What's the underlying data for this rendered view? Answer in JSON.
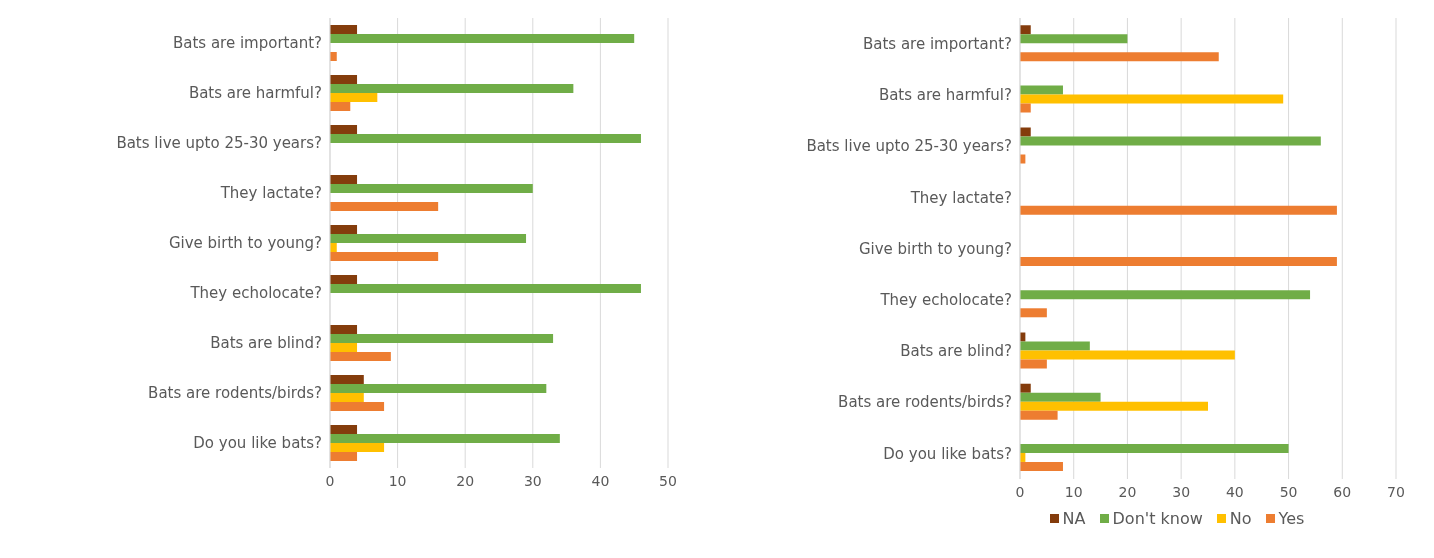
{
  "chart_data": [
    {
      "type": "bar",
      "orientation": "horizontal",
      "categories": [
        "Bats are important?",
        "Bats are harmful?",
        "Bats live upto 25-30 years?",
        "They lactate?",
        "Give birth to young?",
        "They echolocate?",
        "Bats are blind?",
        "Bats are rodents/birds?",
        "Do you like bats?"
      ],
      "series": [
        {
          "color": "#843c0c",
          "values": [
            4,
            4,
            4,
            4,
            4,
            4,
            4,
            5,
            4
          ]
        },
        {
          "color": "#70ad47",
          "values": [
            45,
            36,
            46,
            30,
            29,
            46,
            33,
            32,
            34
          ]
        },
        {
          "color": "#ffc000",
          "values": [
            0,
            7,
            0,
            0,
            1,
            0,
            4,
            5,
            8
          ]
        },
        {
          "color": "#ed7d31",
          "values": [
            1,
            3,
            0,
            16,
            16,
            0,
            9,
            8,
            4
          ]
        }
      ],
      "xlim": [
        0,
        50
      ],
      "xticks": [
        0,
        10,
        20,
        30,
        40,
        50
      ],
      "grid": "x",
      "legend": false
    },
    {
      "type": "bar",
      "orientation": "horizontal",
      "categories": [
        "Bats are important?",
        "Bats are harmful?",
        "Bats live upto 25-30 years?",
        "They lactate?",
        "Give birth to young?",
        "They echolocate?",
        "Bats are blind?",
        "Bats are rodents/birds?",
        "Do you like bats?"
      ],
      "series": [
        {
          "name": "NA",
          "color": "#843c0c",
          "values": [
            2,
            0,
            2,
            0,
            0,
            0,
            1,
            2,
            0
          ]
        },
        {
          "name": "Don't know",
          "color": "#70ad47",
          "values": [
            20,
            8,
            56,
            0,
            0,
            54,
            13,
            15,
            50
          ]
        },
        {
          "name": "No",
          "color": "#ffc000",
          "values": [
            0,
            49,
            0,
            0,
            0,
            0,
            40,
            35,
            1
          ]
        },
        {
          "name": "Yes",
          "color": "#ed7d31",
          "values": [
            37,
            2,
            1,
            59,
            59,
            5,
            5,
            7,
            8
          ]
        }
      ],
      "xlim": [
        0,
        70
      ],
      "xticks": [
        0,
        10,
        20,
        30,
        40,
        50,
        60,
        70
      ],
      "grid": "x",
      "legend": "bottom"
    }
  ]
}
